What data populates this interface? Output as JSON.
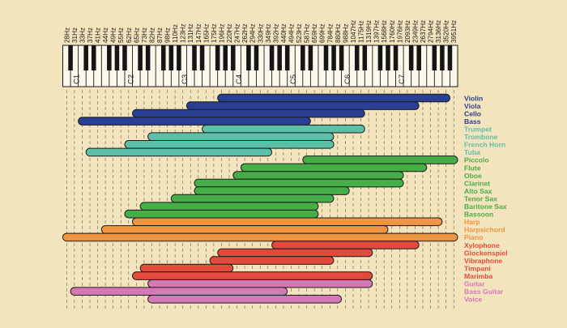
{
  "frequency_labels": [
    "28Hz",
    "31Hz",
    "33Hz",
    "37Hz",
    "41Hz",
    "44Hz",
    "49Hz",
    "55Hz",
    "62Hz",
    "65Hz",
    "73Hz",
    "82Hz",
    "87Hz",
    "98Hz",
    "110Hz",
    "123Hz",
    "131Hz",
    "147Hz",
    "165Hz",
    "175Hz",
    "196Hz",
    "220Hz",
    "247Hz",
    "262Hz",
    "294Hz",
    "330Hz",
    "349Hz",
    "392Hz",
    "440Hz",
    "494Hz",
    "523Hz",
    "587Hz",
    "659Hz",
    "699Hz",
    "784Hz",
    "880Hz",
    "988Hz",
    "1047Hz",
    "1175Hz",
    "1319Hz",
    "1397Hz",
    "1568Hz",
    "1760Hz",
    "1976Hz",
    "2093Hz",
    "2349Hz",
    "2637Hz",
    "2794Hz",
    "3136Hz",
    "3520Hz",
    "3951Hz"
  ],
  "octave_labels": [
    "C1",
    "C2",
    "C3",
    "C4",
    "C5",
    "C6",
    "C7"
  ],
  "colors": {
    "background": "#f3e4bd",
    "strings": "#2a3f94",
    "brass": "#5cbfa8",
    "woodwinds": "#46ae46",
    "keyboards": "#ef9440",
    "percussion": "#e24a3c",
    "plucked": "#d678b6"
  },
  "instruments": [
    {
      "name": "Violin",
      "group": "strings",
      "start": 20,
      "end": 49
    },
    {
      "name": "Viola",
      "group": "strings",
      "start": 16,
      "end": 45
    },
    {
      "name": "Cello",
      "group": "strings",
      "start": 9,
      "end": 38
    },
    {
      "name": "Bass",
      "group": "strings",
      "start": 2,
      "end": 31
    },
    {
      "name": "Trumpet",
      "group": "brass",
      "start": 18,
      "end": 38
    },
    {
      "name": "Trombone",
      "group": "brass",
      "start": 11,
      "end": 34
    },
    {
      "name": "French Horn",
      "group": "brass",
      "start": 8,
      "end": 34
    },
    {
      "name": "Tuba",
      "group": "brass",
      "start": 3,
      "end": 26
    },
    {
      "name": "Piccolo",
      "group": "woodwinds",
      "start": 31,
      "end": 51
    },
    {
      "name": "Flute",
      "group": "woodwinds",
      "start": 23,
      "end": 46
    },
    {
      "name": "Oboe",
      "group": "woodwinds",
      "start": 22,
      "end": 43
    },
    {
      "name": "Clarinet",
      "group": "woodwinds",
      "start": 17,
      "end": 43
    },
    {
      "name": "Alto Sax",
      "group": "woodwinds",
      "start": 17,
      "end": 36
    },
    {
      "name": "Tenor Sax",
      "group": "woodwinds",
      "start": 14,
      "end": 34
    },
    {
      "name": "Baritone Sax",
      "group": "woodwinds",
      "start": 10,
      "end": 32
    },
    {
      "name": "Bassoon",
      "group": "woodwinds",
      "start": 8,
      "end": 32
    },
    {
      "name": "Harp",
      "group": "keyboards",
      "start": 9,
      "end": 48
    },
    {
      "name": "Harpsichord",
      "group": "keyboards",
      "start": 5,
      "end": 41
    },
    {
      "name": "Piano",
      "group": "keyboards",
      "start": 0,
      "end": 51
    },
    {
      "name": "Xylophone",
      "group": "percussion",
      "start": 27,
      "end": 45
    },
    {
      "name": "Glockenspiel",
      "group": "percussion",
      "start": 20,
      "end": 39
    },
    {
      "name": "Vibraphone",
      "group": "percussion",
      "start": 19,
      "end": 34
    },
    {
      "name": "Timpani",
      "group": "percussion",
      "start": 10,
      "end": 21
    },
    {
      "name": "Marimba",
      "group": "percussion",
      "start": 9,
      "end": 39
    },
    {
      "name": "Guitar",
      "group": "plucked",
      "start": 11,
      "end": 39
    },
    {
      "name": "Bass Guitar",
      "group": "plucked",
      "start": 1,
      "end": 28
    },
    {
      "name": "Voice",
      "group": "plucked",
      "start": 11,
      "end": 35
    }
  ]
}
